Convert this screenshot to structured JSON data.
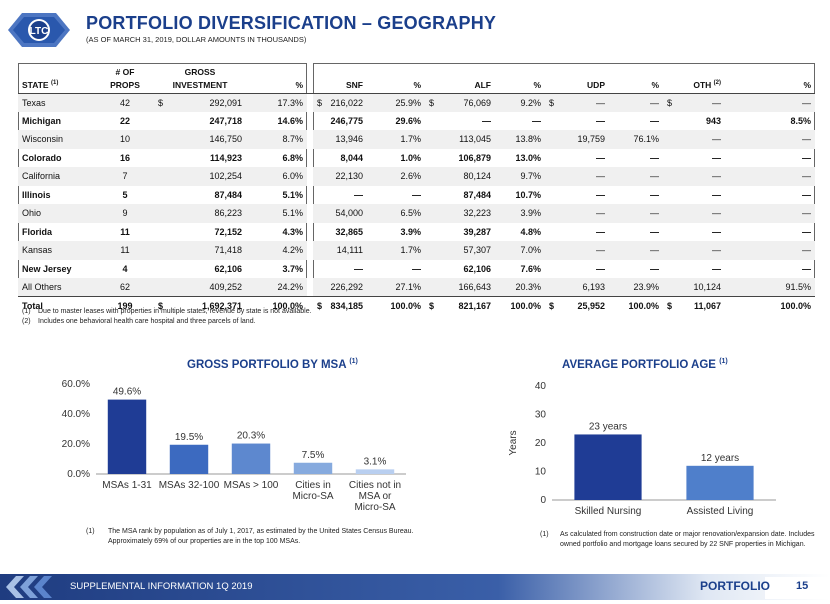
{
  "header": {
    "logo_text": "LTC",
    "title": "PORTFOLIO DIVERSIFICATION – GEOGRAPHY",
    "subtitle": "(AS OF MARCH 31, 2019, DOLLAR AMOUNTS IN THOUSANDS)"
  },
  "table": {
    "headers": {
      "state": "STATE",
      "state_sup": "(1)",
      "props_top": "# OF",
      "props": "PROPS",
      "gross_top": "GROSS",
      "investment": "INVESTMENT",
      "pct": "%",
      "snf": "SNF",
      "alf": "ALF",
      "udp": "UDP",
      "oth": "OTH",
      "oth_sup": "(2)"
    },
    "rows": [
      {
        "state": "Texas",
        "props": "42",
        "inv_cur": "$",
        "inv": "292,091",
        "inv_pct": "17.3%",
        "snf_cur": "$",
        "snf": "216,022",
        "snf_pct": "25.9%",
        "alf_cur": "$",
        "alf": "76,069",
        "alf_pct": "9.2%",
        "udp_cur": "$",
        "udp": "—",
        "udp_pct": "—",
        "oth_cur": "$",
        "oth": "—",
        "oth_pct": "—",
        "bold": false
      },
      {
        "state": "Michigan",
        "props": "22",
        "inv_cur": "",
        "inv": "247,718",
        "inv_pct": "14.6%",
        "snf_cur": "",
        "snf": "246,775",
        "snf_pct": "29.6%",
        "alf_cur": "",
        "alf": "—",
        "alf_pct": "—",
        "udp_cur": "",
        "udp": "—",
        "udp_pct": "—",
        "oth_cur": "",
        "oth": "943",
        "oth_pct": "8.5%",
        "bold": true
      },
      {
        "state": "Wisconsin",
        "props": "10",
        "inv_cur": "",
        "inv": "146,750",
        "inv_pct": "8.7%",
        "snf_cur": "",
        "snf": "13,946",
        "snf_pct": "1.7%",
        "alf_cur": "",
        "alf": "113,045",
        "alf_pct": "13.8%",
        "udp_cur": "",
        "udp": "19,759",
        "udp_pct": "76.1%",
        "oth_cur": "",
        "oth": "—",
        "oth_pct": "—",
        "bold": false
      },
      {
        "state": "Colorado",
        "props": "16",
        "inv_cur": "",
        "inv": "114,923",
        "inv_pct": "6.8%",
        "snf_cur": "",
        "snf": "8,044",
        "snf_pct": "1.0%",
        "alf_cur": "",
        "alf": "106,879",
        "alf_pct": "13.0%",
        "udp_cur": "",
        "udp": "—",
        "udp_pct": "—",
        "oth_cur": "",
        "oth": "—",
        "oth_pct": "—",
        "bold": true
      },
      {
        "state": "California",
        "props": "7",
        "inv_cur": "",
        "inv": "102,254",
        "inv_pct": "6.0%",
        "snf_cur": "",
        "snf": "22,130",
        "snf_pct": "2.6%",
        "alf_cur": "",
        "alf": "80,124",
        "alf_pct": "9.7%",
        "udp_cur": "",
        "udp": "—",
        "udp_pct": "—",
        "oth_cur": "",
        "oth": "—",
        "oth_pct": "—",
        "bold": false
      },
      {
        "state": "Illinois",
        "props": "5",
        "inv_cur": "",
        "inv": "87,484",
        "inv_pct": "5.1%",
        "snf_cur": "",
        "snf": "—",
        "snf_pct": "—",
        "alf_cur": "",
        "alf": "87,484",
        "alf_pct": "10.7%",
        "udp_cur": "",
        "udp": "—",
        "udp_pct": "—",
        "oth_cur": "",
        "oth": "—",
        "oth_pct": "—",
        "bold": true
      },
      {
        "state": "Ohio",
        "props": "9",
        "inv_cur": "",
        "inv": "86,223",
        "inv_pct": "5.1%",
        "snf_cur": "",
        "snf": "54,000",
        "snf_pct": "6.5%",
        "alf_cur": "",
        "alf": "32,223",
        "alf_pct": "3.9%",
        "udp_cur": "",
        "udp": "—",
        "udp_pct": "—",
        "oth_cur": "",
        "oth": "—",
        "oth_pct": "—",
        "bold": false
      },
      {
        "state": "Florida",
        "props": "11",
        "inv_cur": "",
        "inv": "72,152",
        "inv_pct": "4.3%",
        "snf_cur": "",
        "snf": "32,865",
        "snf_pct": "3.9%",
        "alf_cur": "",
        "alf": "39,287",
        "alf_pct": "4.8%",
        "udp_cur": "",
        "udp": "—",
        "udp_pct": "—",
        "oth_cur": "",
        "oth": "—",
        "oth_pct": "—",
        "bold": true
      },
      {
        "state": "Kansas",
        "props": "11",
        "inv_cur": "",
        "inv": "71,418",
        "inv_pct": "4.2%",
        "snf_cur": "",
        "snf": "14,111",
        "snf_pct": "1.7%",
        "alf_cur": "",
        "alf": "57,307",
        "alf_pct": "7.0%",
        "udp_cur": "",
        "udp": "—",
        "udp_pct": "—",
        "oth_cur": "",
        "oth": "—",
        "oth_pct": "—",
        "bold": false
      },
      {
        "state": "New Jersey",
        "props": "4",
        "inv_cur": "",
        "inv": "62,106",
        "inv_pct": "3.7%",
        "snf_cur": "",
        "snf": "—",
        "snf_pct": "—",
        "alf_cur": "",
        "alf": "62,106",
        "alf_pct": "7.6%",
        "udp_cur": "",
        "udp": "—",
        "udp_pct": "—",
        "oth_cur": "",
        "oth": "—",
        "oth_pct": "—",
        "bold": true
      },
      {
        "state": "All Others",
        "props": "62",
        "inv_cur": "",
        "inv": "409,252",
        "inv_pct": "24.2%",
        "snf_cur": "",
        "snf": "226,292",
        "snf_pct": "27.1%",
        "alf_cur": "",
        "alf": "166,643",
        "alf_pct": "20.3%",
        "udp_cur": "",
        "udp": "6,193",
        "udp_pct": "23.9%",
        "oth_cur": "",
        "oth": "10,124",
        "oth_pct": "91.5%",
        "bold": false
      }
    ],
    "total": {
      "state": "Total",
      "props": "199",
      "inv_cur": "$",
      "inv": "1,692,371",
      "inv_pct": "100.0%",
      "snf_cur": "$",
      "snf": "834,185",
      "snf_pct": "100.0%",
      "alf_cur": "$",
      "alf": "821,167",
      "alf_pct": "100.0%",
      "udp_cur": "$",
      "udp": "25,952",
      "udp_pct": "100.0%",
      "oth_cur": "$",
      "oth": "11,067",
      "oth_pct": "100.0%"
    }
  },
  "table_notes": [
    {
      "num": "(1)",
      "text": "Due to master leases with properties in multiple states, revenue by state is not available."
    },
    {
      "num": "(2)",
      "text": "Includes one behavioral health care hospital and three parcels of land."
    }
  ],
  "chart_data": [
    {
      "type": "bar",
      "title": "GROSS PORTFOLIO BY MSA",
      "title_sup": "(1)",
      "categories": [
        "MSAs 1-31",
        "MSAs 32-100",
        "MSAs > 100",
        "Cities in Micro-SA",
        "Cities not in MSA or Micro-SA"
      ],
      "values": [
        49.6,
        19.5,
        20.3,
        7.5,
        3.1
      ],
      "value_labels": [
        "49.6%",
        "19.5%",
        "20.3%",
        "7.5%",
        "3.1%"
      ],
      "ylim": [
        0,
        60
      ],
      "yticks": [
        "0.0%",
        "20.0%",
        "40.0%",
        "60.0%"
      ],
      "xlabel": "",
      "ylabel": "",
      "grid": false,
      "colors": [
        "#1f3c95",
        "#3c6ac0",
        "#5d88cf",
        "#86aade",
        "#b9cff0"
      ],
      "note": {
        "num": "(1)",
        "text": "The MSA rank by population as of July 1, 2017, as estimated by the United States Census Bureau. Approximately 69% of our properties are in the top 100 MSAs."
      }
    },
    {
      "type": "bar",
      "title": "AVERAGE PORTFOLIO AGE",
      "title_sup": "(1)",
      "categories": [
        "Skilled Nursing",
        "Assisted Living"
      ],
      "values": [
        23,
        12
      ],
      "value_labels": [
        "23 years",
        "12 years"
      ],
      "ylim": [
        0,
        40
      ],
      "yticks": [
        "0",
        "10",
        "20",
        "30",
        "40"
      ],
      "xlabel": "",
      "ylabel": "Years",
      "grid": false,
      "colors": [
        "#1f3c95",
        "#4f7fcb"
      ],
      "note": {
        "num": "(1)",
        "text": "As calculated from construction date or major renovation/expansion date. Includes owned portfolio and mortgage loans secured by 22 SNF properties in Michigan."
      }
    }
  ],
  "footer": {
    "left_text": "SUPPLEMENTAL INFORMATION 1Q 2019",
    "section": "PORTFOLIO",
    "page": "15"
  }
}
